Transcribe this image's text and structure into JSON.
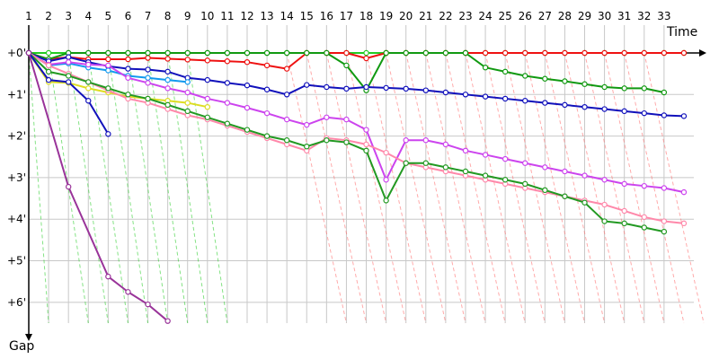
{
  "chart_data": {
    "type": "line",
    "title": "",
    "xlabel": "Time",
    "ylabel": "Gap",
    "x_ticks": [
      "1",
      "2",
      "3",
      "4",
      "5",
      "6",
      "7",
      "8",
      "9",
      "10",
      "11",
      "12",
      "13",
      "14",
      "15",
      "16",
      "17",
      "18",
      "19",
      "20",
      "21",
      "22",
      "23",
      "24",
      "25",
      "26",
      "27",
      "28",
      "29",
      "30",
      "31",
      "32",
      "33"
    ],
    "y_ticks": [
      "+0'",
      "+1'",
      "+2'",
      "+3'",
      "+4'",
      "+5'",
      "+6'"
    ],
    "xlim": [
      1,
      34.5
    ],
    "ylim": [
      0,
      6.5
    ],
    "grid": true,
    "legend": "none",
    "series": [
      {
        "color": "#22cc22",
        "points": [
          [
            1,
            0
          ],
          [
            2,
            0
          ],
          [
            3,
            0
          ],
          [
            4,
            0
          ],
          [
            5,
            0
          ],
          [
            6,
            0
          ],
          [
            7,
            0
          ],
          [
            8,
            0
          ],
          [
            9,
            0
          ],
          [
            10,
            0
          ],
          [
            11,
            0
          ],
          [
            12,
            0
          ],
          [
            13,
            0
          ],
          [
            14,
            0
          ],
          [
            15,
            0
          ],
          [
            16,
            0
          ],
          [
            17,
            0
          ],
          [
            18,
            0
          ],
          [
            19,
            0
          ],
          [
            20,
            0
          ],
          [
            21,
            0
          ],
          [
            22,
            0
          ],
          [
            23,
            0
          ],
          [
            24,
            0
          ],
          [
            25,
            0
          ],
          [
            26,
            0
          ],
          [
            27,
            0
          ],
          [
            28,
            0
          ],
          [
            29,
            0
          ],
          [
            30,
            0
          ],
          [
            31,
            0
          ],
          [
            32,
            0
          ],
          [
            33,
            0
          ],
          [
            34,
            0
          ]
        ]
      },
      {
        "color": "#ee1111",
        "points": [
          [
            1,
            0
          ],
          [
            2,
            0.15
          ],
          [
            3,
            0.1
          ],
          [
            4,
            0.15
          ],
          [
            5,
            0.15
          ],
          [
            6,
            0.15
          ],
          [
            7,
            0.12
          ],
          [
            8,
            0.14
          ],
          [
            9,
            0.16
          ],
          [
            10,
            0.18
          ],
          [
            11,
            0.2
          ],
          [
            12,
            0.22
          ],
          [
            13,
            0.3
          ],
          [
            14,
            0.38
          ],
          [
            15,
            0
          ],
          [
            16,
            0
          ],
          [
            17,
            0
          ],
          [
            18,
            0.13
          ],
          [
            19,
            0
          ],
          [
            20,
            0
          ],
          [
            21,
            0
          ],
          [
            22,
            0
          ],
          [
            23,
            0
          ],
          [
            24,
            0
          ],
          [
            25,
            0
          ],
          [
            26,
            0
          ],
          [
            27,
            0
          ],
          [
            28,
            0
          ],
          [
            29,
            0
          ],
          [
            30,
            0
          ],
          [
            31,
            0
          ],
          [
            32,
            0
          ],
          [
            33,
            0
          ],
          [
            34,
            0
          ]
        ]
      },
      {
        "color": "#119911",
        "points": [
          [
            1,
            0
          ],
          [
            2,
            0.15
          ],
          [
            3,
            0
          ],
          [
            4,
            0
          ],
          [
            5,
            0
          ],
          [
            6,
            0
          ],
          [
            7,
            0
          ],
          [
            8,
            0
          ],
          [
            9,
            0
          ],
          [
            10,
            0
          ],
          [
            11,
            0
          ],
          [
            12,
            0
          ],
          [
            13,
            0
          ],
          [
            14,
            0
          ],
          [
            15,
            0
          ],
          [
            16,
            0
          ],
          [
            17,
            0.3
          ],
          [
            18,
            0.9
          ],
          [
            19,
            0
          ],
          [
            20,
            0
          ],
          [
            21,
            0
          ],
          [
            22,
            0
          ],
          [
            23,
            0
          ],
          [
            24,
            0.35
          ],
          [
            25,
            0.45
          ],
          [
            26,
            0.55
          ],
          [
            27,
            0.62
          ],
          [
            28,
            0.68
          ],
          [
            29,
            0.75
          ],
          [
            30,
            0.82
          ],
          [
            31,
            0.85
          ],
          [
            32,
            0.85
          ],
          [
            33,
            0.95
          ]
        ]
      },
      {
        "color": "#1111bb",
        "points": [
          [
            1,
            0
          ],
          [
            2,
            0.2
          ],
          [
            3,
            0.1
          ],
          [
            4,
            0.22
          ],
          [
            5,
            0.32
          ],
          [
            6,
            0.38
          ],
          [
            7,
            0.4
          ],
          [
            8,
            0.45
          ],
          [
            9,
            0.6
          ],
          [
            10,
            0.65
          ],
          [
            11,
            0.72
          ],
          [
            12,
            0.78
          ],
          [
            13,
            0.88
          ],
          [
            14,
            1.0
          ],
          [
            15,
            0.77
          ],
          [
            16,
            0.82
          ],
          [
            17,
            0.86
          ],
          [
            18,
            0.82
          ],
          [
            19,
            0.84
          ],
          [
            20,
            0.86
          ],
          [
            21,
            0.9
          ],
          [
            22,
            0.95
          ],
          [
            23,
            1.0
          ],
          [
            24,
            1.05
          ],
          [
            25,
            1.1
          ],
          [
            26,
            1.15
          ],
          [
            27,
            1.2
          ],
          [
            28,
            1.25
          ],
          [
            29,
            1.3
          ],
          [
            30,
            1.35
          ],
          [
            31,
            1.4
          ],
          [
            32,
            1.45
          ],
          [
            33,
            1.5
          ],
          [
            34,
            1.52
          ]
        ]
      },
      {
        "color": "#1199ee",
        "points": [
          [
            1,
            0
          ],
          [
            2,
            0.3
          ],
          [
            3,
            0.25
          ],
          [
            4,
            0.35
          ],
          [
            5,
            0.42
          ],
          [
            6,
            0.55
          ],
          [
            7,
            0.6
          ],
          [
            8,
            0.65
          ],
          [
            9,
            0.7
          ]
        ]
      },
      {
        "color": "#cc44ee",
        "points": [
          [
            1,
            0
          ],
          [
            2,
            0.28
          ],
          [
            3,
            0.22
          ],
          [
            4,
            0.28
          ],
          [
            5,
            0.3
          ],
          [
            6,
            0.6
          ],
          [
            7,
            0.72
          ],
          [
            8,
            0.85
          ],
          [
            9,
            0.95
          ],
          [
            10,
            1.1
          ],
          [
            11,
            1.2
          ],
          [
            12,
            1.32
          ],
          [
            13,
            1.45
          ],
          [
            14,
            1.6
          ],
          [
            15,
            1.73
          ],
          [
            16,
            1.55
          ],
          [
            17,
            1.6
          ],
          [
            18,
            1.85
          ],
          [
            19,
            3.05
          ],
          [
            20,
            2.1
          ],
          [
            21,
            2.1
          ],
          [
            22,
            2.2
          ],
          [
            23,
            2.35
          ],
          [
            24,
            2.45
          ],
          [
            25,
            2.55
          ],
          [
            26,
            2.65
          ],
          [
            27,
            2.75
          ],
          [
            28,
            2.85
          ],
          [
            29,
            2.95
          ],
          [
            30,
            3.05
          ],
          [
            31,
            3.15
          ],
          [
            32,
            3.2
          ],
          [
            33,
            3.25
          ],
          [
            34,
            3.35
          ]
        ]
      },
      {
        "color": "#dddd22",
        "points": [
          [
            1,
            0
          ],
          [
            2,
            0.7
          ],
          [
            3,
            0.72
          ],
          [
            4,
            0.85
          ],
          [
            5,
            0.95
          ],
          [
            6,
            1.05
          ],
          [
            7,
            1.1
          ],
          [
            8,
            1.15
          ],
          [
            9,
            1.2
          ],
          [
            10,
            1.3
          ]
        ]
      },
      {
        "color": "#ff88aa",
        "points": [
          [
            1,
            0
          ],
          [
            2,
            0.3
          ],
          [
            3,
            0.5
          ],
          [
            4,
            0.7
          ],
          [
            5,
            0.9
          ],
          [
            6,
            1.1
          ],
          [
            7,
            1.2
          ],
          [
            8,
            1.35
          ],
          [
            9,
            1.5
          ],
          [
            10,
            1.6
          ],
          [
            11,
            1.75
          ],
          [
            12,
            1.9
          ],
          [
            13,
            2.05
          ],
          [
            14,
            2.2
          ],
          [
            15,
            2.35
          ],
          [
            16,
            2.05
          ],
          [
            17,
            2.1
          ],
          [
            18,
            2.2
          ],
          [
            19,
            2.4
          ],
          [
            20,
            2.65
          ],
          [
            21,
            2.75
          ],
          [
            22,
            2.85
          ],
          [
            23,
            2.95
          ],
          [
            24,
            3.05
          ],
          [
            25,
            3.15
          ],
          [
            26,
            3.25
          ],
          [
            27,
            3.35
          ],
          [
            28,
            3.45
          ],
          [
            29,
            3.55
          ],
          [
            30,
            3.65
          ],
          [
            31,
            3.8
          ],
          [
            32,
            3.95
          ],
          [
            33,
            4.05
          ],
          [
            34,
            4.1
          ]
        ]
      },
      {
        "color": "#229922",
        "points": [
          [
            1,
            0
          ],
          [
            2,
            0.45
          ],
          [
            3,
            0.55
          ],
          [
            4,
            0.7
          ],
          [
            5,
            0.85
          ],
          [
            6,
            1.0
          ],
          [
            7,
            1.1
          ],
          [
            8,
            1.25
          ],
          [
            9,
            1.4
          ],
          [
            10,
            1.55
          ],
          [
            11,
            1.7
          ],
          [
            12,
            1.85
          ],
          [
            13,
            2.0
          ],
          [
            14,
            2.1
          ],
          [
            15,
            2.25
          ],
          [
            16,
            2.1
          ],
          [
            17,
            2.15
          ],
          [
            18,
            2.35
          ],
          [
            19,
            3.55
          ],
          [
            20,
            2.65
          ],
          [
            21,
            2.65
          ],
          [
            22,
            2.75
          ],
          [
            23,
            2.85
          ],
          [
            24,
            2.95
          ],
          [
            25,
            3.05
          ],
          [
            26,
            3.15
          ],
          [
            27,
            3.3
          ],
          [
            28,
            3.45
          ],
          [
            29,
            3.6
          ],
          [
            30,
            4.05
          ],
          [
            31,
            4.1
          ],
          [
            32,
            4.2
          ],
          [
            33,
            4.3
          ]
        ]
      },
      {
        "color": "#1111bb",
        "points": [
          [
            1,
            0
          ],
          [
            2,
            0.65
          ],
          [
            3,
            0.7
          ],
          [
            4,
            1.15
          ],
          [
            5,
            1.95
          ]
        ]
      },
      {
        "color": "#993399",
        "points": [
          [
            1,
            0
          ],
          [
            3,
            3.22
          ],
          [
            5,
            5.38
          ],
          [
            6,
            5.75
          ],
          [
            7,
            6.05
          ],
          [
            8,
            6.45
          ]
        ]
      }
    ],
    "lap_lines": [
      {
        "color": "#22cc22",
        "segments": [
          [
            1,
            2
          ],
          [
            2,
            4
          ],
          [
            3,
            5
          ],
          [
            4,
            6
          ],
          [
            5,
            7
          ],
          [
            6,
            8
          ],
          [
            7,
            9
          ],
          [
            8,
            10
          ],
          [
            9,
            11
          ]
        ]
      },
      {
        "color": "#ff6666",
        "segments": [
          [
            14,
            17
          ],
          [
            15,
            18
          ],
          [
            16,
            19
          ],
          [
            17,
            20
          ],
          [
            18,
            21
          ],
          [
            19,
            22
          ],
          [
            20,
            23
          ],
          [
            21,
            24
          ],
          [
            22,
            25
          ],
          [
            23,
            26
          ],
          [
            24,
            27
          ],
          [
            25,
            28
          ],
          [
            26,
            29
          ],
          [
            27,
            30
          ],
          [
            28,
            31
          ],
          [
            29,
            32
          ],
          [
            30,
            33
          ],
          [
            31,
            34
          ],
          [
            32,
            35
          ]
        ]
      }
    ]
  }
}
